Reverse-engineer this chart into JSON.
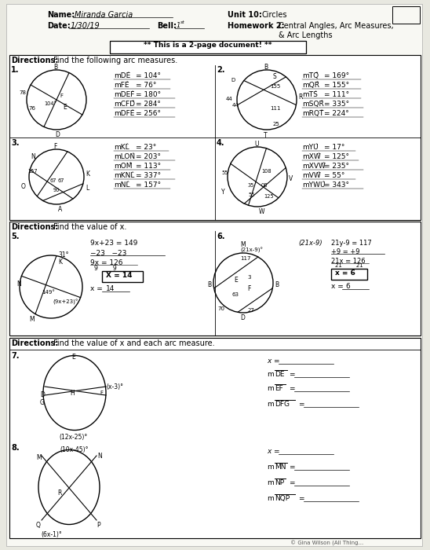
{
  "bg_color": "#e8e8e0",
  "paper_color": "#f8f8f3",
  "name": "Miranda Garcia",
  "date": "1/30/19",
  "bell": "1st"
}
